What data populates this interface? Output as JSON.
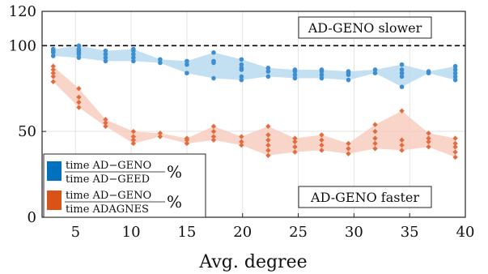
{
  "chart_data": {
    "type": "scatter",
    "xlabel": "Avg. degree",
    "ylabel": "",
    "xlim": [
      2,
      40
    ],
    "ylim": [
      0,
      120
    ],
    "x_ticks": [
      5,
      10,
      15,
      20,
      25,
      30,
      35,
      40
    ],
    "y_ticks": [
      0,
      50,
      100,
      120
    ],
    "grid": true,
    "reference_line": {
      "y": 100,
      "style": "dashed",
      "color": "#000000"
    },
    "annotations": [
      {
        "text": "AD-GENO slower",
        "placement": "top-right"
      },
      {
        "text": "AD-GENO faster",
        "placement": "bottom-right"
      }
    ],
    "legend": {
      "placement": "left",
      "entries": [
        {
          "numerator": "time AD−GENO",
          "denominator": "time AD−GEED",
          "suffix": "%",
          "color": "#3d8fd1"
        },
        {
          "numerator": "time AD−GENO",
          "denominator": "time ADAGNES",
          "suffix": "%",
          "color": "#e36c3f"
        }
      ]
    },
    "series": [
      {
        "color": "#3d8fd1",
        "band_color": "#b9d9f0",
        "marker": "circle",
        "groups": [
          {
            "x": 3.0,
            "values": [
              94,
              96,
              97,
              98
            ]
          },
          {
            "x": 5.3,
            "values": [
              93,
              95,
              96,
              97,
              98,
              100
            ]
          },
          {
            "x": 7.7,
            "values": [
              91,
              93,
              95,
              97
            ]
          },
          {
            "x": 10.2,
            "values": [
              91,
              93,
              95,
              97,
              98
            ]
          },
          {
            "x": 12.6,
            "values": [
              90,
              92
            ]
          },
          {
            "x": 15.0,
            "values": [
              84,
              89,
              91
            ]
          },
          {
            "x": 17.4,
            "values": [
              81,
              90,
              91,
              96
            ]
          },
          {
            "x": 19.9,
            "values": [
              80,
              82,
              86,
              87,
              89,
              92
            ]
          },
          {
            "x": 22.3,
            "values": [
              82,
              85,
              87
            ]
          },
          {
            "x": 24.7,
            "values": [
              81,
              83,
              85,
              86
            ]
          },
          {
            "x": 27.1,
            "values": [
              81,
              83,
              85,
              86
            ]
          },
          {
            "x": 29.5,
            "values": [
              80,
              83,
              84,
              85
            ]
          },
          {
            "x": 31.9,
            "values": [
              84,
              86
            ]
          },
          {
            "x": 34.3,
            "values": [
              76,
              82,
              84,
              86,
              89
            ]
          },
          {
            "x": 36.7,
            "values": [
              84,
              85
            ]
          },
          {
            "x": 39.1,
            "values": [
              80,
              82,
              84,
              86,
              88
            ]
          }
        ]
      },
      {
        "color": "#e36c3f",
        "band_color": "#f7cdbf",
        "marker": "diamond",
        "groups": [
          {
            "x": 3.0,
            "values": [
              79,
              82,
              84,
              86,
              88
            ]
          },
          {
            "x": 5.3,
            "values": [
              64,
              67,
              70,
              75
            ]
          },
          {
            "x": 7.7,
            "values": [
              53,
              55,
              57
            ]
          },
          {
            "x": 10.2,
            "values": [
              43,
              45,
              47,
              50
            ]
          },
          {
            "x": 12.6,
            "values": [
              47,
              49
            ]
          },
          {
            "x": 15.0,
            "values": [
              43,
              45,
              46
            ]
          },
          {
            "x": 17.4,
            "values": [
              45,
              47,
              50,
              53
            ]
          },
          {
            "x": 19.9,
            "values": [
              42,
              44,
              47
            ]
          },
          {
            "x": 22.3,
            "values": [
              36,
              39,
              42,
              45,
              48,
              53
            ]
          },
          {
            "x": 24.7,
            "values": [
              38,
              41,
              44,
              46
            ]
          },
          {
            "x": 27.1,
            "values": [
              39,
              42,
              45,
              48
            ]
          },
          {
            "x": 29.5,
            "values": [
              37,
              40,
              43
            ]
          },
          {
            "x": 31.9,
            "values": [
              40,
              43,
              46,
              50,
              54
            ]
          },
          {
            "x": 34.3,
            "values": [
              39,
              42,
              45,
              62
            ]
          },
          {
            "x": 36.7,
            "values": [
              41,
              44,
              46,
              49
            ]
          },
          {
            "x": 39.1,
            "values": [
              35,
              38,
              41,
              43,
              46
            ]
          }
        ]
      }
    ]
  }
}
